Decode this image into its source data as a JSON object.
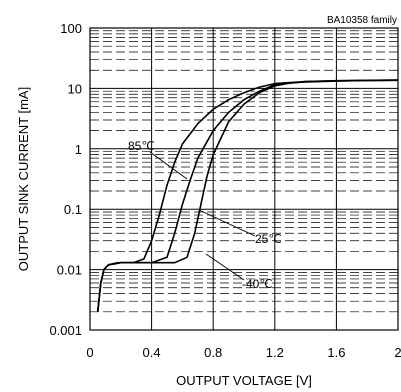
{
  "chart_data": {
    "type": "line",
    "subtitle": "BA10358  family",
    "xlabel": "OUTPUT VOLTAGE [V]",
    "ylabel": "OUTPUT SINK CURRENT [mA]",
    "xlim": [
      0,
      2
    ],
    "ylim": [
      0.001,
      100
    ],
    "y_scale": "log",
    "grid": true,
    "x_ticks": [
      "0",
      "0.4",
      "0.8",
      "1.2",
      "1.6",
      "2"
    ],
    "y_ticks": [
      "0.001",
      "0.01",
      "0.1",
      "1",
      "10",
      "100"
    ],
    "annotations": [
      "85℃",
      "25℃",
      "-40℃"
    ],
    "series": [
      {
        "name": "85℃",
        "x": [
          0.05,
          0.07,
          0.09,
          0.12,
          0.18,
          0.28,
          0.35,
          0.4,
          0.45,
          0.5,
          0.55,
          0.6,
          0.7,
          0.8,
          0.9,
          1.0,
          1.1,
          1.2,
          1.4,
          1.6,
          1.8,
          2.0
        ],
        "y": [
          0.002,
          0.006,
          0.01,
          0.012,
          0.013,
          0.013,
          0.015,
          0.03,
          0.08,
          0.25,
          0.6,
          1.2,
          2.6,
          4.5,
          6.5,
          8.5,
          10.5,
          12.0,
          13.0,
          13.3,
          13.5,
          13.6
        ]
      },
      {
        "name": "25℃",
        "x": [
          0.05,
          0.07,
          0.09,
          0.12,
          0.2,
          0.4,
          0.5,
          0.55,
          0.6,
          0.65,
          0.7,
          0.8,
          0.9,
          1.0,
          1.1,
          1.2,
          1.4,
          1.6,
          1.8,
          2.0
        ],
        "y": [
          0.002,
          0.006,
          0.01,
          0.012,
          0.013,
          0.013,
          0.016,
          0.04,
          0.12,
          0.3,
          0.7,
          2.0,
          4.0,
          6.5,
          9.0,
          11.5,
          13.0,
          13.4,
          13.6,
          13.7
        ]
      },
      {
        "name": "-40℃",
        "x": [
          0.05,
          0.07,
          0.09,
          0.12,
          0.2,
          0.55,
          0.63,
          0.68,
          0.72,
          0.76,
          0.8,
          0.9,
          1.0,
          1.1,
          1.2,
          1.3,
          1.4,
          1.6,
          1.8,
          2.0
        ],
        "y": [
          0.002,
          0.006,
          0.01,
          0.012,
          0.013,
          0.013,
          0.016,
          0.04,
          0.12,
          0.35,
          0.8,
          2.8,
          5.5,
          8.5,
          11.0,
          12.3,
          12.8,
          13.2,
          13.5,
          13.7
        ]
      }
    ]
  }
}
